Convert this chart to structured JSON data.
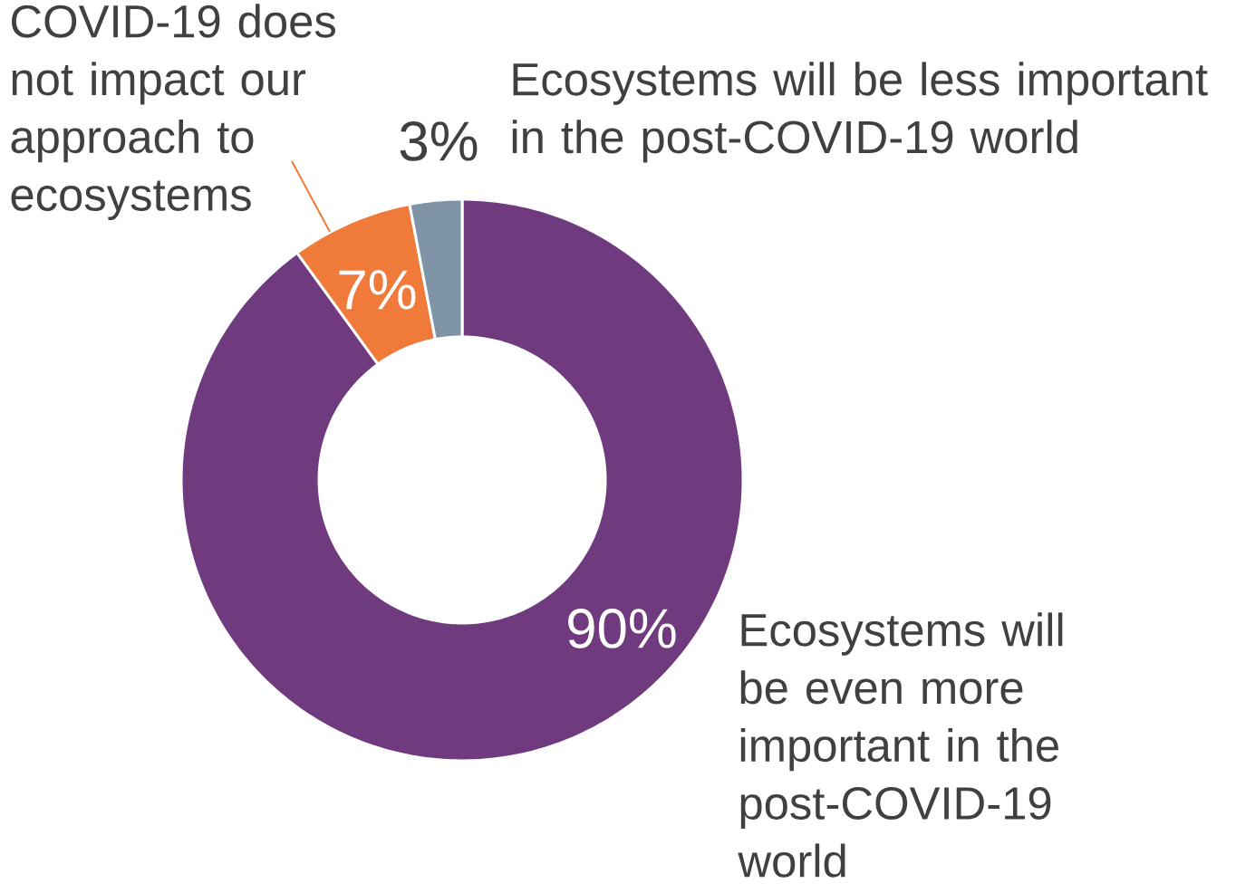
{
  "chart_data": {
    "type": "donut",
    "categories": [
      "Ecosystems will be even more important in the post-COVID-19 world",
      "COVID-19 does not impact our approach to ecosystems",
      "Ecosystems will be less important in the post-COVID-19 world"
    ],
    "values": [
      90,
      7,
      3
    ],
    "colors": [
      "#6f3a7e",
      "#f07a3a",
      "#7f94a6"
    ],
    "value_labels": [
      "90%",
      "7%",
      "3%"
    ],
    "legend": false
  }
}
